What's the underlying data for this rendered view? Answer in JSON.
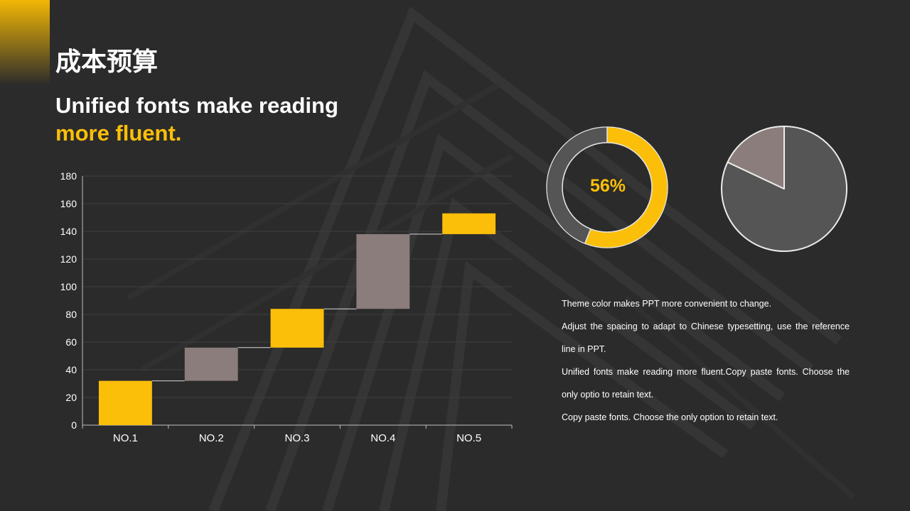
{
  "slide": {
    "title": "成本预算",
    "subtitle_line1": "Unified fonts make reading",
    "subtitle_line2": "more fluent."
  },
  "colors": {
    "background": "#2b2b2b",
    "accent": "#fbbf09",
    "secondary": "#8b7d7b",
    "pie_main": "#555555",
    "white": "#ffffff"
  },
  "chart_data": [
    {
      "type": "bar",
      "subtype": "waterfall",
      "categories": [
        "NO.1",
        "NO.2",
        "NO.3",
        "NO.4",
        "NO.5"
      ],
      "series": [
        {
          "base": 0,
          "top": 32,
          "color": "#fbbf09"
        },
        {
          "base": 32,
          "top": 56,
          "color": "#8b7d7b"
        },
        {
          "base": 56,
          "top": 84,
          "color": "#fbbf09"
        },
        {
          "base": 84,
          "top": 138,
          "color": "#8b7d7b"
        },
        {
          "base": 138,
          "top": 153,
          "color": "#fbbf09"
        }
      ],
      "ylim": [
        0,
        180
      ],
      "yticks": [
        0,
        20,
        40,
        60,
        80,
        100,
        120,
        140,
        160,
        180
      ],
      "grid": true,
      "connectors": true
    },
    {
      "type": "pie",
      "subtype": "donut",
      "values": [
        56,
        44
      ],
      "colors": [
        "#fbbf09",
        "#555555"
      ],
      "center_label": "56%"
    },
    {
      "type": "pie",
      "values": [
        82,
        18
      ],
      "colors": [
        "#555555",
        "#8b7d7b"
      ]
    }
  ],
  "notes": [
    "Theme color makes PPT more convenient  to change.",
    "Adjust the spacing to adapt to Chinese  typesetting, use the reference line  in PPT.",
    "Unified  fonts make reading more fluent.Copy paste fonts. Choose the only optio to retain text.",
    "Copy paste  fonts. Choose the only option to retain text."
  ]
}
